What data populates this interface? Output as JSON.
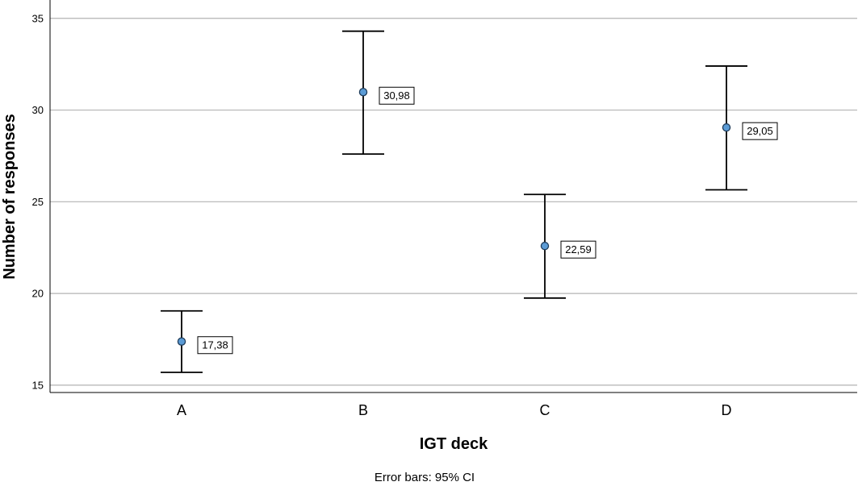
{
  "chart_data": {
    "type": "scatter",
    "subtype": "error-bar",
    "xlabel": "IGT deck",
    "ylabel": "Number of responses",
    "categories": [
      "A",
      "B",
      "C",
      "D"
    ],
    "means": [
      17.38,
      30.98,
      22.59,
      29.05
    ],
    "mean_labels": [
      "17,38",
      "30,98",
      "22,59",
      "29,05"
    ],
    "ci_lower": [
      15.7,
      27.6,
      19.75,
      25.65
    ],
    "ci_upper": [
      19.05,
      34.3,
      25.4,
      32.4
    ],
    "ylim": [
      14.6,
      36
    ],
    "yticks": [
      15,
      20,
      25,
      30,
      35
    ],
    "grid": true,
    "note": "Error bars: 95% CI",
    "colors": {
      "marker_fill": "#5b9bd5",
      "marker_stroke": "#1f3c5a",
      "grid": "#b3b3b3",
      "axis": "#000000"
    }
  }
}
